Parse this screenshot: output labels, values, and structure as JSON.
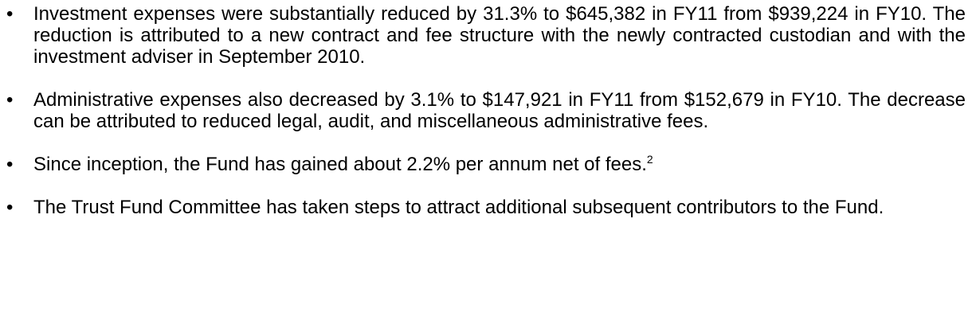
{
  "items": [
    {
      "text": "Investment expenses were substantially reduced by 31.3% to $645,382 in FY11 from $939,224 in FY10. The reduction is attributed to a new contract and fee structure with the newly contracted custodian and with the investment adviser in September 2010."
    },
    {
      "text": "Administrative expenses also decreased by 3.1% to $147,921 in FY11 from $152,679 in FY10. The decrease can be attributed to reduced legal, audit, and miscellaneous administrative fees."
    },
    {
      "text": "Since inception, the Fund has gained about 2.2% per annum net of fees.",
      "footnote": "2"
    },
    {
      "text": "The Trust Fund Committee has taken steps to attract additional subsequent contributors to the Fund."
    }
  ]
}
